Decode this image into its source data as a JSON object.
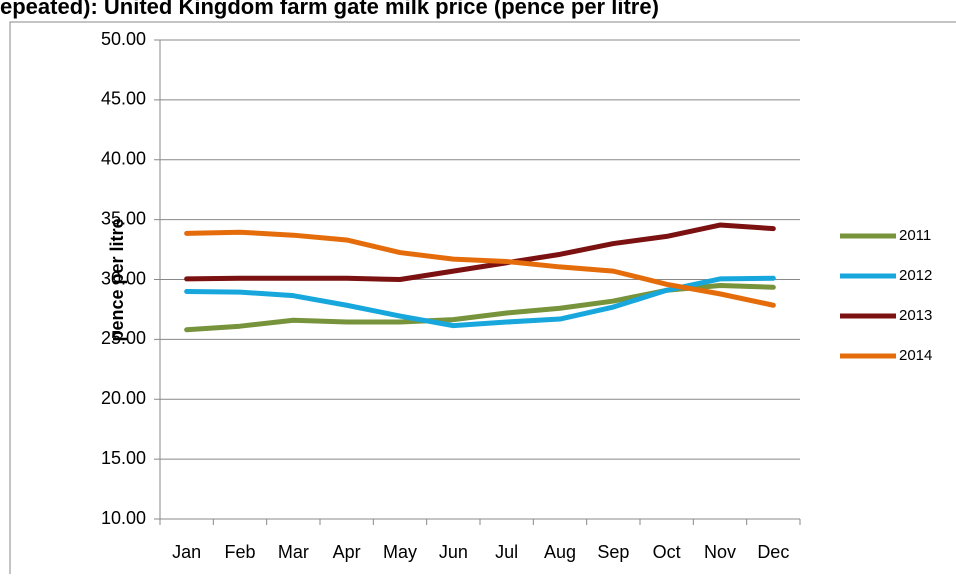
{
  "chart_data": {
    "type": "line",
    "title": "epeated): United Kingdom farm gate milk price (pence per litre)",
    "y_label": "pence per litre",
    "categories": [
      "Jan",
      "Feb",
      "Mar",
      "Apr",
      "May",
      "Jun",
      "Jul",
      "Aug",
      "Sep",
      "Oct",
      "Nov",
      "Dec"
    ],
    "series": [
      {
        "name": "2011",
        "color": "#77933c",
        "values": [
          25.8,
          26.1,
          26.6,
          26.45,
          26.45,
          26.65,
          27.2,
          27.6,
          28.2,
          29.1,
          29.5,
          29.35
        ]
      },
      {
        "name": "2012",
        "color": "#17a7dc",
        "values": [
          29.0,
          28.95,
          28.65,
          27.85,
          26.95,
          26.15,
          26.45,
          26.7,
          27.7,
          29.1,
          30.05,
          30.1
        ]
      },
      {
        "name": "2013",
        "color": "#7b1111",
        "values": [
          30.05,
          30.1,
          30.1,
          30.1,
          30.0,
          30.7,
          31.4,
          32.1,
          33.0,
          33.6,
          34.55,
          34.25
        ]
      },
      {
        "name": "2014",
        "color": "#e46c0a",
        "values": [
          33.85,
          33.95,
          33.7,
          33.3,
          32.25,
          31.7,
          31.5,
          31.05,
          30.7,
          29.6,
          28.8,
          27.85
        ]
      }
    ],
    "ylim": [
      10,
      50
    ],
    "yticks": [
      {
        "value": 10,
        "label": "10.00"
      },
      {
        "value": 15,
        "label": "15.00"
      },
      {
        "value": 20,
        "label": "20.00"
      },
      {
        "value": 25,
        "label": "25.00"
      },
      {
        "value": 30,
        "label": "30.00"
      },
      {
        "value": 35,
        "label": "35.00"
      },
      {
        "value": 40,
        "label": "40.00"
      },
      {
        "value": 45,
        "label": "45.00"
      },
      {
        "value": 50,
        "label": "50.00"
      }
    ],
    "grid": true,
    "legend": "right"
  }
}
